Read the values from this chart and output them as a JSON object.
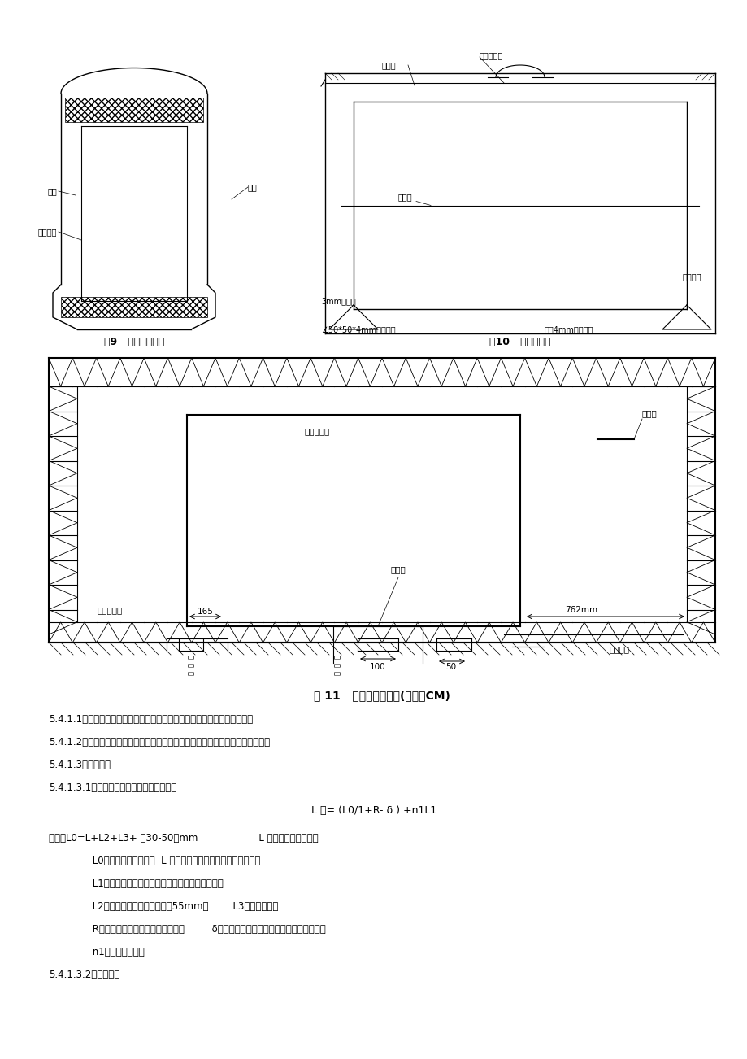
{
  "bg_color": "#ffffff",
  "text_color": "#000000",
  "fig9_caption": "图9   木板内模示意",
  "fig10_caption": "图10   钢内模示意",
  "fig11_caption": "图 11   台座布置示意图(单位：CM)",
  "text_lines": [
    "5.4.1.1钢铰线采用三链条等距离吊装，每次吊装一件，应避免碰撞、挤压。",
    "5.4.1.2运输和存储：注意防锈、防腐蚀、防损伤，堆放一般情况下不宜超过三层。",
    "5.4.1.3钢铰线制作",
    "5.4.1.3.1钢铰线下料长度由下式计算确定：",
    "L 总= (L0/1+R- δ ) +n1L1",
    "其中：L0=L+L2+L3+ （30-50）mm                    L 总：钢铰线下料总长",
    "         L0：钢铰线的计算长度  L 台座长度（包括横梁，定位板在内）",
    "         L1：每个对焊接头的预留量（一般为钢铰线直径）",
    "         L2：锥形夹具的长度（一般为55mm）        L3：千斤顶长度",
    "         R：钢筋冷拉拉长率（由试验确定）         δ：钢筋冷拉后的弹性回缩率（由试验确定）",
    "         n1：对焊接头数量",
    "5.4.1.3.2钢铰线切断"
  ]
}
